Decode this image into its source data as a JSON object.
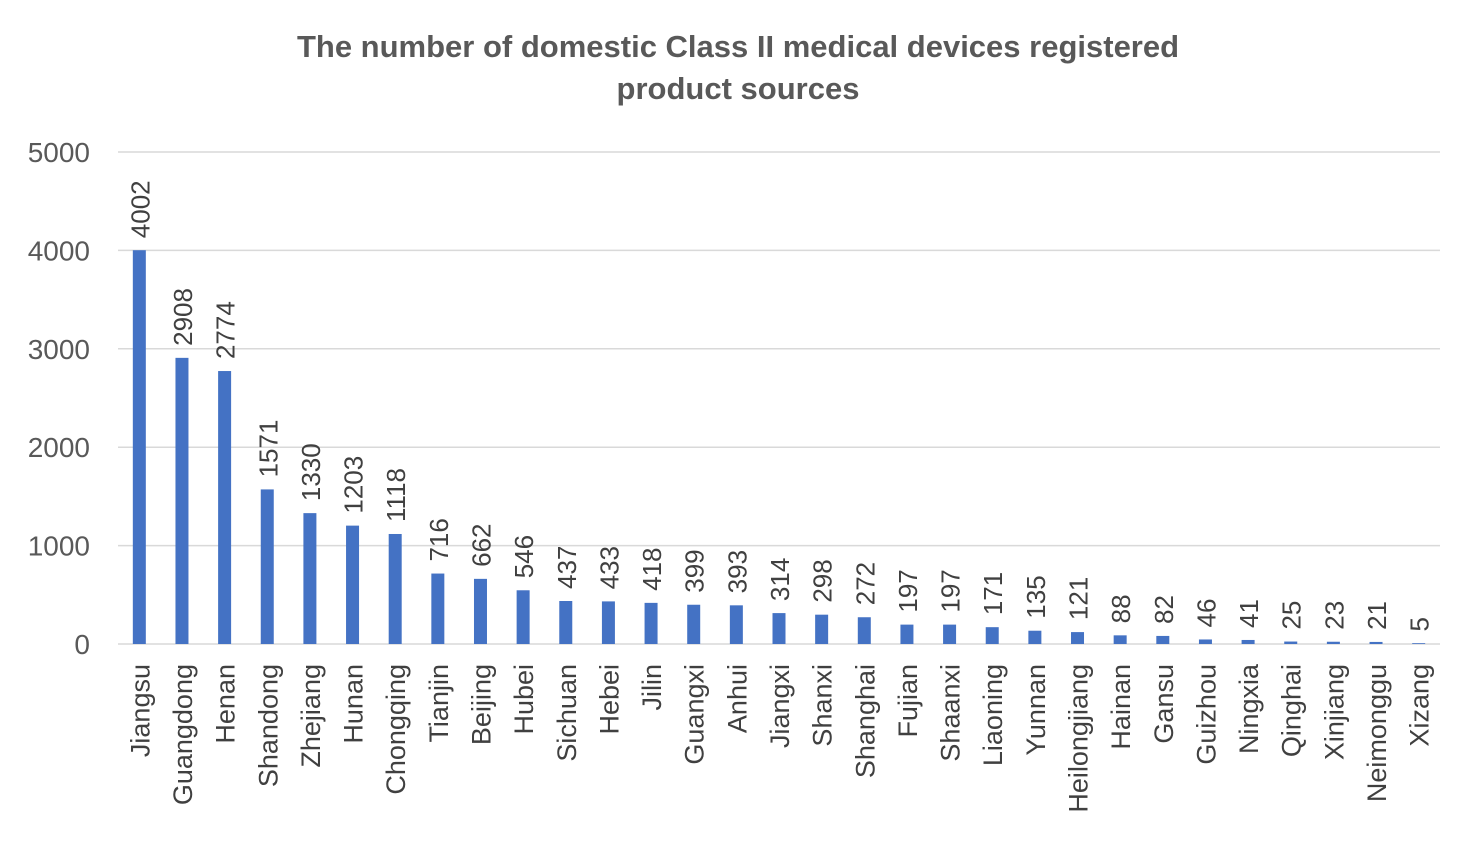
{
  "chart_data": {
    "type": "bar",
    "title_lines": [
      "The number of domestic Class II medical devices registered",
      "product sources"
    ],
    "categories": [
      "Jiangsu",
      "Guangdong",
      "Henan",
      "Shandong",
      "Zhejiang",
      "Hunan",
      "Chongqing",
      "Tianjin",
      "Beijing",
      "Hubei",
      "Sichuan",
      "Hebei",
      "Jilin",
      "Guangxi",
      "Anhui",
      "Jiangxi",
      "Shanxi",
      "Shanghai",
      "Fujian",
      "Shaanxi",
      "Liaoning",
      "Yunnan",
      "Heilongjiang",
      "Hainan",
      "Gansu",
      "Guizhou",
      "Ningxia",
      "Qinghai",
      "Xinjiang",
      "Neimonggu",
      "Xizang"
    ],
    "values": [
      4002,
      2908,
      2774,
      1571,
      1330,
      1203,
      1118,
      716,
      662,
      546,
      437,
      433,
      418,
      399,
      393,
      314,
      298,
      272,
      197,
      197,
      171,
      135,
      121,
      88,
      82,
      46,
      41,
      25,
      23,
      21,
      5
    ],
    "ylim": [
      0,
      5000
    ],
    "yticks": [
      0,
      1000,
      2000,
      3000,
      4000,
      5000
    ],
    "grid": true,
    "data_labels": true,
    "bar_color": "#4472C4"
  }
}
